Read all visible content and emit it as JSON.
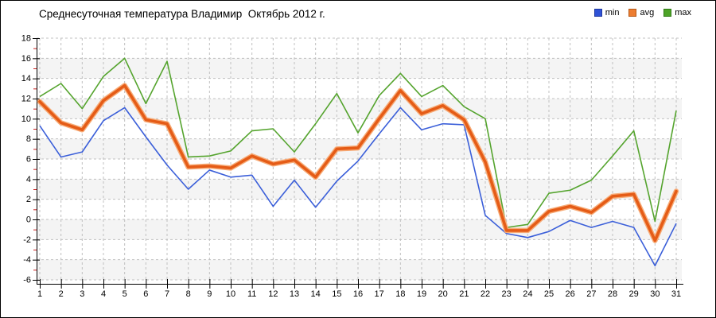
{
  "title": "Среднесуточная температура Владимир  Октябрь 2012 г.",
  "legend": {
    "items": [
      {
        "label": "min",
        "color": "#2F52D6",
        "border": "#1F379E"
      },
      {
        "label": "avg",
        "color": "#ED7D31",
        "border": "#B55715"
      },
      {
        "label": "max",
        "color": "#4DA327",
        "border": "#2F7A14"
      }
    ]
  },
  "colors": {
    "grid": "#C0C0C0",
    "band": "#F4F4F4",
    "axis": "#000000",
    "minor_tick": "#CC2222",
    "min_line": "#3B5FD9",
    "avg_line": "#E55C17",
    "avg_halo": "#F7AC78",
    "max_line": "#55A42E"
  },
  "chart_data": {
    "type": "line",
    "title": "Среднесуточная температура Владимир  Октябрь 2012 г.",
    "xlabel": "",
    "ylabel": "",
    "ylim": [
      -6,
      18
    ],
    "ytick_step": 2,
    "grid": true,
    "legend_position": "top-right",
    "x": [
      1,
      2,
      3,
      4,
      5,
      6,
      7,
      8,
      9,
      10,
      11,
      12,
      13,
      14,
      15,
      16,
      17,
      18,
      19,
      20,
      21,
      22,
      23,
      24,
      25,
      26,
      27,
      28,
      29,
      30,
      31
    ],
    "yticks": [
      18,
      16,
      14,
      12,
      10,
      8,
      6,
      4,
      2,
      0,
      -2,
      -4,
      -6
    ],
    "series": [
      {
        "name": "min",
        "color": "#3B5FD9",
        "values": [
          9.3,
          6.2,
          6.7,
          9.8,
          11.1,
          8.2,
          5.4,
          3.0,
          4.9,
          4.2,
          4.4,
          1.3,
          3.9,
          1.2,
          3.8,
          5.8,
          8.5,
          11.1,
          8.9,
          9.5,
          9.4,
          0.4,
          -1.4,
          -1.8,
          -1.2,
          -0.1,
          -0.8,
          -0.2,
          -0.8,
          -4.6,
          -0.4
        ]
      },
      {
        "name": "avg",
        "color": "#E55C17",
        "values": [
          11.7,
          9.6,
          8.9,
          11.8,
          13.3,
          9.9,
          9.5,
          5.2,
          5.3,
          5.1,
          6.3,
          5.5,
          5.9,
          4.2,
          7.0,
          7.1,
          10.0,
          12.8,
          10.5,
          11.3,
          9.9,
          5.7,
          -1.1,
          -1.1,
          0.8,
          1.3,
          0.7,
          2.3,
          2.5,
          -2.1,
          2.8
        ]
      },
      {
        "name": "max",
        "color": "#55A42E",
        "values": [
          12.2,
          13.5,
          11.0,
          14.2,
          16.0,
          11.5,
          15.7,
          6.2,
          6.3,
          6.8,
          8.8,
          9.0,
          6.7,
          9.5,
          12.5,
          8.6,
          12.3,
          14.5,
          12.2,
          13.3,
          11.2,
          10.0,
          -0.8,
          -0.5,
          2.6,
          2.9,
          3.9,
          6.3,
          8.8,
          -0.2,
          10.8
        ]
      }
    ]
  }
}
